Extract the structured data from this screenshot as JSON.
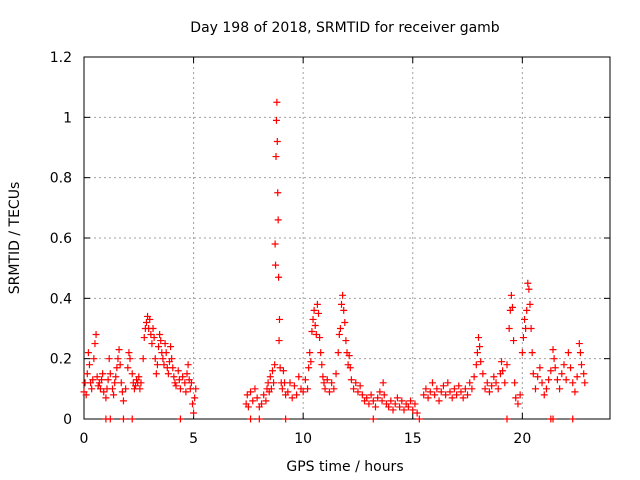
{
  "chart_data": {
    "type": "scatter",
    "title": "Day 198 of 2018, SRMTID for receiver gamb",
    "xlabel": "GPS time / hours",
    "ylabel": "SRMTID / TECUs",
    "xlim": [
      0,
      24
    ],
    "ylim": [
      0,
      1.2
    ],
    "xticks": [
      0,
      5,
      10,
      15,
      20
    ],
    "xtick_labels": [
      "0",
      "5",
      "10",
      "15",
      "20"
    ],
    "yticks": [
      0,
      0.2,
      0.4,
      0.6,
      0.8,
      1.0,
      1.2
    ],
    "ytick_labels": [
      "0",
      "0.2",
      "0.4",
      "0.6",
      "0.8",
      "1",
      "1.2"
    ],
    "grid": true,
    "marker": "+",
    "series": [
      {
        "name": "SRMTID",
        "color": "#ff0000",
        "points": [
          [
            0.0,
            0.09
          ],
          [
            0.05,
            0.12
          ],
          [
            0.1,
            0.08
          ],
          [
            0.15,
            0.15
          ],
          [
            0.2,
            0.22
          ],
          [
            0.25,
            0.18
          ],
          [
            0.3,
            0.12
          ],
          [
            0.35,
            0.1
          ],
          [
            0.4,
            0.13
          ],
          [
            0.45,
            0.2
          ],
          [
            0.5,
            0.25
          ],
          [
            0.55,
            0.28
          ],
          [
            0.6,
            0.14
          ],
          [
            0.65,
            0.11
          ],
          [
            0.7,
            0.12
          ],
          [
            0.75,
            0.1
          ],
          [
            0.8,
            0.13
          ],
          [
            0.85,
            0.15
          ],
          [
            0.9,
            0.09
          ],
          [
            1.0,
            0.07
          ],
          [
            1.05,
            0.1
          ],
          [
            1.1,
            0.13
          ],
          [
            1.15,
            0.2
          ],
          [
            1.2,
            0.15
          ],
          [
            1.3,
            0.1
          ],
          [
            1.35,
            0.08
          ],
          [
            1.4,
            0.12
          ],
          [
            1.45,
            0.14
          ],
          [
            1.5,
            0.17
          ],
          [
            1.55,
            0.2
          ],
          [
            1.6,
            0.23
          ],
          [
            1.65,
            0.18
          ],
          [
            1.7,
            0.12
          ],
          [
            1.75,
            0.09
          ],
          [
            1.8,
            0.06
          ],
          [
            1.9,
            0.1
          ],
          [
            2.0,
            0.17
          ],
          [
            2.05,
            0.22
          ],
          [
            2.1,
            0.2
          ],
          [
            2.2,
            0.15
          ],
          [
            2.25,
            0.12
          ],
          [
            2.3,
            0.1
          ],
          [
            2.35,
            0.11
          ],
          [
            2.4,
            0.13
          ],
          [
            2.45,
            0.12
          ],
          [
            2.5,
            0.14
          ],
          [
            2.55,
            0.1
          ],
          [
            2.6,
            0.12
          ],
          [
            2.7,
            0.2
          ],
          [
            2.75,
            0.27
          ],
          [
            2.8,
            0.3
          ],
          [
            2.85,
            0.32
          ],
          [
            2.9,
            0.34
          ],
          [
            2.95,
            0.3
          ],
          [
            3.0,
            0.33
          ],
          [
            3.05,
            0.28
          ],
          [
            3.1,
            0.25
          ],
          [
            3.15,
            0.3
          ],
          [
            3.2,
            0.27
          ],
          [
            3.25,
            0.2
          ],
          [
            3.3,
            0.15
          ],
          [
            3.35,
            0.18
          ],
          [
            3.4,
            0.24
          ],
          [
            3.45,
            0.28
          ],
          [
            3.5,
            0.26
          ],
          [
            3.55,
            0.22
          ],
          [
            3.6,
            0.2
          ],
          [
            3.65,
            0.18
          ],
          [
            3.7,
            0.25
          ],
          [
            3.75,
            0.22
          ],
          [
            3.8,
            0.17
          ],
          [
            3.85,
            0.15
          ],
          [
            3.9,
            0.19
          ],
          [
            3.95,
            0.24
          ],
          [
            4.0,
            0.2
          ],
          [
            4.05,
            0.17
          ],
          [
            4.1,
            0.14
          ],
          [
            4.15,
            0.12
          ],
          [
            4.2,
            0.11
          ],
          [
            4.3,
            0.16
          ],
          [
            4.35,
            0.13
          ],
          [
            4.4,
            0.1
          ],
          [
            4.5,
            0.14
          ],
          [
            4.6,
            0.12
          ],
          [
            4.65,
            0.09
          ],
          [
            4.7,
            0.15
          ],
          [
            4.75,
            0.18
          ],
          [
            4.8,
            0.13
          ],
          [
            4.85,
            0.1
          ],
          [
            4.9,
            0.12
          ],
          [
            4.95,
            0.05
          ],
          [
            5.0,
            0.02
          ],
          [
            5.05,
            0.07
          ],
          [
            5.1,
            0.1
          ],
          [
            7.4,
            0.05
          ],
          [
            7.45,
            0.08
          ],
          [
            7.5,
            0.04
          ],
          [
            7.6,
            0.09
          ],
          [
            7.7,
            0.06
          ],
          [
            7.8,
            0.1
          ],
          [
            7.9,
            0.07
          ],
          [
            8.0,
            0.04
          ],
          [
            8.1,
            0.05
          ],
          [
            8.2,
            0.08
          ],
          [
            8.3,
            0.06
          ],
          [
            8.35,
            0.1
          ],
          [
            8.4,
            0.12
          ],
          [
            8.45,
            0.09
          ],
          [
            8.5,
            0.14
          ],
          [
            8.55,
            0.1
          ],
          [
            8.6,
            0.16
          ],
          [
            8.65,
            0.12
          ],
          [
            8.7,
            0.18
          ],
          [
            8.72,
            0.58
          ],
          [
            8.74,
            0.51
          ],
          [
            8.76,
            0.87
          ],
          [
            8.78,
            0.99
          ],
          [
            8.8,
            1.05
          ],
          [
            8.82,
            0.92
          ],
          [
            8.84,
            0.75
          ],
          [
            8.86,
            0.66
          ],
          [
            8.88,
            0.47
          ],
          [
            8.9,
            0.26
          ],
          [
            8.92,
            0.33
          ],
          [
            8.95,
            0.17
          ],
          [
            9.0,
            0.12
          ],
          [
            9.05,
            0.1
          ],
          [
            9.1,
            0.16
          ],
          [
            9.15,
            0.12
          ],
          [
            9.2,
            0.08
          ],
          [
            9.3,
            0.09
          ],
          [
            9.4,
            0.12
          ],
          [
            9.5,
            0.07
          ],
          [
            9.6,
            0.11
          ],
          [
            9.7,
            0.08
          ],
          [
            9.8,
            0.14
          ],
          [
            9.9,
            0.1
          ],
          [
            10.0,
            0.09
          ],
          [
            10.1,
            0.13
          ],
          [
            10.2,
            0.1
          ],
          [
            10.25,
            0.17
          ],
          [
            10.3,
            0.22
          ],
          [
            10.35,
            0.19
          ],
          [
            10.4,
            0.29
          ],
          [
            10.45,
            0.33
          ],
          [
            10.5,
            0.36
          ],
          [
            10.55,
            0.31
          ],
          [
            10.6,
            0.28
          ],
          [
            10.65,
            0.38
          ],
          [
            10.7,
            0.35
          ],
          [
            10.75,
            0.27
          ],
          [
            10.8,
            0.22
          ],
          [
            10.85,
            0.18
          ],
          [
            10.9,
            0.14
          ],
          [
            10.95,
            0.12
          ],
          [
            11.0,
            0.1
          ],
          [
            11.1,
            0.13
          ],
          [
            11.2,
            0.09
          ],
          [
            11.3,
            0.12
          ],
          [
            11.4,
            0.1
          ],
          [
            11.5,
            0.15
          ],
          [
            11.6,
            0.22
          ],
          [
            11.65,
            0.28
          ],
          [
            11.7,
            0.3
          ],
          [
            11.75,
            0.38
          ],
          [
            11.8,
            0.41
          ],
          [
            11.85,
            0.36
          ],
          [
            11.9,
            0.32
          ],
          [
            11.95,
            0.26
          ],
          [
            12.0,
            0.22
          ],
          [
            12.05,
            0.18
          ],
          [
            12.1,
            0.21
          ],
          [
            12.15,
            0.17
          ],
          [
            12.2,
            0.13
          ],
          [
            12.3,
            0.1
          ],
          [
            12.4,
            0.12
          ],
          [
            12.5,
            0.09
          ],
          [
            12.6,
            0.11
          ],
          [
            12.7,
            0.08
          ],
          [
            12.8,
            0.06
          ],
          [
            12.9,
            0.07
          ],
          [
            13.0,
            0.05
          ],
          [
            13.1,
            0.08
          ],
          [
            13.2,
            0.06
          ],
          [
            13.3,
            0.04
          ],
          [
            13.4,
            0.07
          ],
          [
            13.5,
            0.09
          ],
          [
            13.6,
            0.06
          ],
          [
            13.65,
            0.12
          ],
          [
            13.7,
            0.08
          ],
          [
            13.8,
            0.05
          ],
          [
            13.9,
            0.04
          ],
          [
            14.0,
            0.06
          ],
          [
            14.1,
            0.03
          ],
          [
            14.2,
            0.05
          ],
          [
            14.3,
            0.07
          ],
          [
            14.4,
            0.04
          ],
          [
            14.5,
            0.06
          ],
          [
            14.6,
            0.03
          ],
          [
            14.7,
            0.05
          ],
          [
            14.8,
            0.04
          ],
          [
            14.9,
            0.06
          ],
          [
            15.0,
            0.03
          ],
          [
            15.1,
            0.05
          ],
          [
            15.2,
            0.02
          ],
          [
            15.5,
            0.08
          ],
          [
            15.6,
            0.1
          ],
          [
            15.7,
            0.07
          ],
          [
            15.8,
            0.09
          ],
          [
            15.9,
            0.12
          ],
          [
            16.0,
            0.08
          ],
          [
            16.1,
            0.1
          ],
          [
            16.2,
            0.06
          ],
          [
            16.3,
            0.09
          ],
          [
            16.4,
            0.11
          ],
          [
            16.5,
            0.08
          ],
          [
            16.6,
            0.12
          ],
          [
            16.7,
            0.09
          ],
          [
            16.8,
            0.07
          ],
          [
            16.9,
            0.1
          ],
          [
            17.0,
            0.08
          ],
          [
            17.1,
            0.11
          ],
          [
            17.2,
            0.09
          ],
          [
            17.3,
            0.07
          ],
          [
            17.4,
            0.1
          ],
          [
            17.5,
            0.08
          ],
          [
            17.6,
            0.12
          ],
          [
            17.7,
            0.1
          ],
          [
            17.8,
            0.14
          ],
          [
            17.9,
            0.18
          ],
          [
            17.95,
            0.22
          ],
          [
            18.0,
            0.27
          ],
          [
            18.05,
            0.24
          ],
          [
            18.1,
            0.19
          ],
          [
            18.2,
            0.15
          ],
          [
            18.3,
            0.1
          ],
          [
            18.4,
            0.12
          ],
          [
            18.5,
            0.09
          ],
          [
            18.6,
            0.11
          ],
          [
            18.7,
            0.14
          ],
          [
            18.8,
            0.12
          ],
          [
            18.9,
            0.1
          ],
          [
            19.0,
            0.15
          ],
          [
            19.05,
            0.19
          ],
          [
            19.1,
            0.16
          ],
          [
            19.2,
            0.12
          ],
          [
            19.3,
            0.18
          ],
          [
            19.4,
            0.3
          ],
          [
            19.45,
            0.36
          ],
          [
            19.5,
            0.41
          ],
          [
            19.55,
            0.37
          ],
          [
            19.6,
            0.26
          ],
          [
            19.65,
            0.12
          ],
          [
            19.7,
            0.07
          ],
          [
            19.8,
            0.05
          ],
          [
            19.9,
            0.08
          ],
          [
            20.0,
            0.22
          ],
          [
            20.05,
            0.27
          ],
          [
            20.1,
            0.33
          ],
          [
            20.15,
            0.3
          ],
          [
            20.2,
            0.36
          ],
          [
            20.25,
            0.45
          ],
          [
            20.3,
            0.43
          ],
          [
            20.35,
            0.38
          ],
          [
            20.4,
            0.3
          ],
          [
            20.45,
            0.22
          ],
          [
            20.5,
            0.15
          ],
          [
            20.6,
            0.1
          ],
          [
            20.7,
            0.14
          ],
          [
            20.8,
            0.17
          ],
          [
            20.9,
            0.12
          ],
          [
            21.0,
            0.08
          ],
          [
            21.1,
            0.1
          ],
          [
            21.2,
            0.13
          ],
          [
            21.3,
            0.16
          ],
          [
            21.4,
            0.23
          ],
          [
            21.45,
            0.2
          ],
          [
            21.5,
            0.17
          ],
          [
            21.6,
            0.13
          ],
          [
            21.7,
            0.1
          ],
          [
            21.8,
            0.15
          ],
          [
            21.9,
            0.18
          ],
          [
            22.0,
            0.13
          ],
          [
            22.1,
            0.22
          ],
          [
            22.2,
            0.17
          ],
          [
            22.3,
            0.12
          ],
          [
            22.4,
            0.09
          ],
          [
            22.5,
            0.14
          ],
          [
            22.6,
            0.25
          ],
          [
            22.65,
            0.22
          ],
          [
            22.7,
            0.18
          ],
          [
            22.8,
            0.15
          ],
          [
            22.85,
            0.12
          ],
          [
            1.0,
            0.0
          ],
          [
            1.2,
            0.0
          ],
          [
            1.8,
            0.0
          ],
          [
            2.2,
            0.0
          ],
          [
            4.4,
            0.0
          ],
          [
            7.6,
            0.0
          ],
          [
            8.0,
            0.0
          ],
          [
            9.2,
            0.0
          ],
          [
            13.2,
            0.0
          ],
          [
            15.3,
            0.0
          ],
          [
            19.3,
            0.0
          ],
          [
            21.3,
            0.0
          ],
          [
            21.4,
            0.0
          ],
          [
            22.3,
            0.0
          ]
        ]
      }
    ]
  }
}
